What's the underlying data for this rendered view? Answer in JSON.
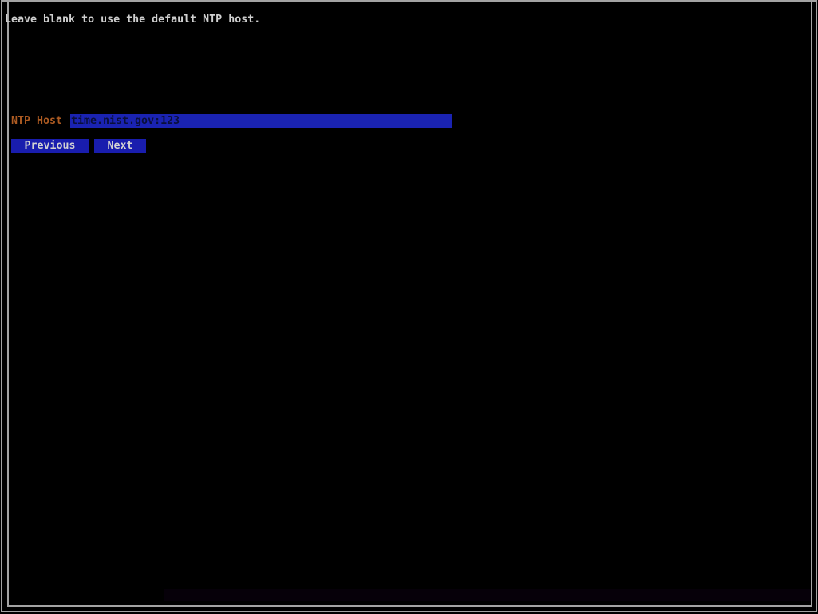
{
  "screen": {
    "message": "Leave blank to use the default NTP host.",
    "form": {
      "ntp_host_label": "NTP Host",
      "ntp_host_value": "time.nist.gov:123"
    },
    "buttons": {
      "previous_label": "Previous",
      "next_label": "Next"
    },
    "colors": {
      "background": "#000000",
      "frame_border": "#a3a3a3",
      "message_text": "#cfcfcf",
      "label_text": "#ad5b22",
      "field_background": "#1a23b2",
      "field_text": "#0a0f3a",
      "button_background": "#191dae",
      "button_text": "#d2d2d2"
    }
  }
}
